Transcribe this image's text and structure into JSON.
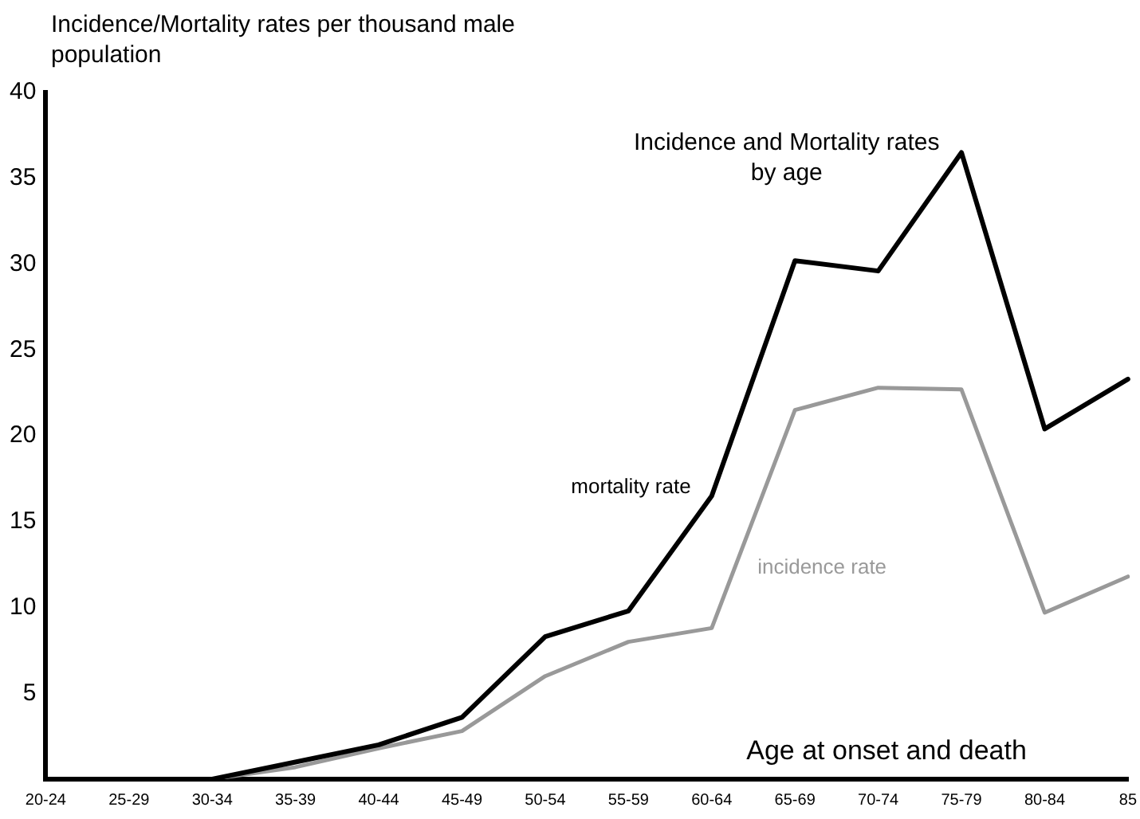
{
  "chart_data": {
    "type": "line",
    "title": "Incidence and Mortality rates by age",
    "ylabel": "Incidence/Mortality rates per thousand male population",
    "xlabel": "Age at onset and death",
    "categories": [
      "20-24",
      "25-29",
      "30-34",
      "35-39",
      "40-44",
      "45-49",
      "50-54",
      "55-59",
      "60-64",
      "65-69",
      "70-74",
      "75-79",
      "80-84",
      "85"
    ],
    "series": [
      {
        "name": "mortality rate",
        "color": "#000000",
        "values": [
          null,
          null,
          0,
          1.0,
          2.0,
          3.6,
          8.3,
          9.8,
          16.5,
          30.2,
          29.6,
          36.5,
          20.4,
          23.3
        ]
      },
      {
        "name": "incidence rate",
        "color": "#999999",
        "values": [
          null,
          null,
          0,
          0.7,
          1.8,
          2.8,
          6.0,
          8.0,
          8.8,
          21.5,
          22.8,
          22.7,
          9.7,
          11.8
        ]
      }
    ],
    "ylim": [
      0,
      40
    ],
    "yticks": [
      5,
      10,
      15,
      20,
      25,
      30,
      35,
      40
    ],
    "grid": false,
    "legend": false,
    "marker": "none",
    "line_style": "solid"
  }
}
